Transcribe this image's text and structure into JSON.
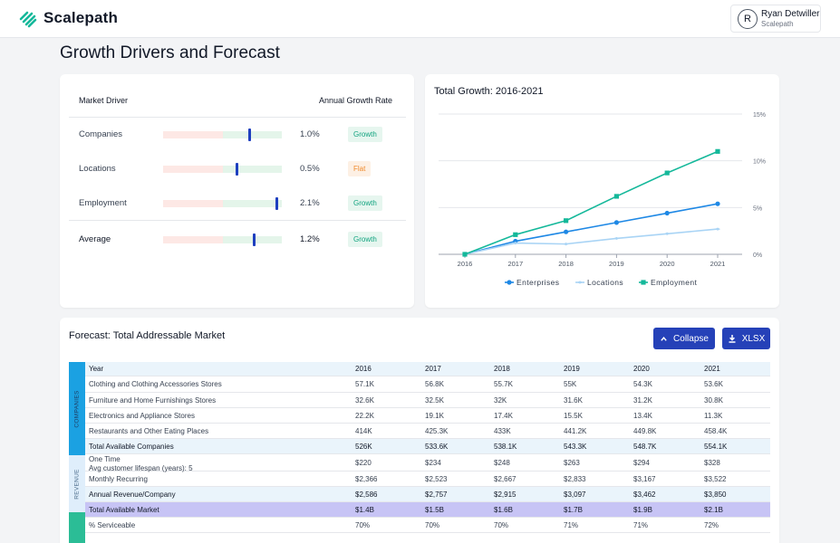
{
  "brand": {
    "name": "Scalepath"
  },
  "user": {
    "initial": "R",
    "name": "Ryan Detwiller",
    "org": "Scalepath"
  },
  "page": {
    "title": "Growth Drivers and Forecast"
  },
  "drivers": {
    "header_driver": "Market Driver",
    "header_rate": "Annual Growth Rate",
    "rows": [
      {
        "label": "Companies",
        "rate": "1.0%",
        "marker": 0.73,
        "status": "Growth"
      },
      {
        "label": "Locations",
        "rate": "0.5%",
        "marker": 0.62,
        "status": "Flat"
      },
      {
        "label": "Employment",
        "rate": "2.1%",
        "marker": 0.96,
        "status": "Growth"
      }
    ],
    "average": {
      "label": "Average",
      "rate": "1.2%",
      "marker": 0.77,
      "status": "Growth"
    }
  },
  "chart": {
    "title": "Total Growth: 2016-2021",
    "legend": [
      "Enterprises",
      "Locations",
      "Employment"
    ]
  },
  "chart_data": {
    "type": "line",
    "title": "Total Growth: 2016-2021",
    "x": [
      "2016",
      "2017",
      "2018",
      "2019",
      "2020",
      "2021"
    ],
    "y_ticks": [
      "0%",
      "5%",
      "10%",
      "15%"
    ],
    "ylim": [
      0,
      15
    ],
    "y_axis_side": "right",
    "grid": true,
    "legend_position": "bottom",
    "series": [
      {
        "name": "Enterprises",
        "color": "#1e88e5",
        "marker": "circle",
        "values": [
          0,
          1.4,
          2.4,
          3.4,
          4.4,
          5.4
        ]
      },
      {
        "name": "Locations",
        "color": "#a9d4f5",
        "marker": "diamond",
        "values": [
          0,
          1.2,
          1.1,
          1.7,
          2.2,
          2.7
        ]
      },
      {
        "name": "Employment",
        "color": "#14b89a",
        "marker": "square",
        "values": [
          0,
          2.1,
          3.6,
          6.2,
          8.7,
          11.0
        ]
      }
    ]
  },
  "forecast": {
    "title": "Forecast: Total Addressable Market",
    "collapse_label": "Collapse",
    "xlsx_label": "XLSX",
    "groups": {
      "companies": "COMPANIES",
      "revenue": "REVENUE"
    },
    "header": [
      "Year",
      "2016",
      "2017",
      "2018",
      "2019",
      "2020",
      "2021"
    ],
    "rows": [
      {
        "label": "Clothing and Clothing Accessories Stores",
        "values": [
          "57.1K",
          "56.8K",
          "55.7K",
          "55K",
          "54.3K",
          "53.6K"
        ]
      },
      {
        "label": "Furniture and Home Furnishings Stores",
        "values": [
          "32.6K",
          "32.5K",
          "32K",
          "31.6K",
          "31.2K",
          "30.8K"
        ]
      },
      {
        "label": "Electronics and Appliance Stores",
        "values": [
          "22.2K",
          "19.1K",
          "17.4K",
          "15.5K",
          "13.4K",
          "11.3K"
        ]
      },
      {
        "label": "Restaurants and Other Eating Places",
        "values": [
          "414K",
          "425.3K",
          "433K",
          "441.2K",
          "449.8K",
          "458.4K"
        ]
      },
      {
        "label": "Total Available Companies",
        "values": [
          "526K",
          "533.6K",
          "538.1K",
          "543.3K",
          "548.7K",
          "554.1K"
        ]
      },
      {
        "label": "One Time",
        "sublabel": "Avg customer lifespan (years): 5",
        "values": [
          "$220",
          "$234",
          "$248",
          "$263",
          "$294",
          "$328"
        ]
      },
      {
        "label": "Monthly Recurring",
        "values": [
          "$2,366",
          "$2,523",
          "$2,667",
          "$2,833",
          "$3,167",
          "$3,522"
        ]
      },
      {
        "label": "Annual Revenue/Company",
        "values": [
          "$2,586",
          "$2,757",
          "$2,915",
          "$3,097",
          "$3,462",
          "$3,850"
        ]
      },
      {
        "label": "Total Available Market",
        "values": [
          "$1.4B",
          "$1.5B",
          "$1.6B",
          "$1.7B",
          "$1.9B",
          "$2.1B"
        ]
      },
      {
        "label": "% Serviceable",
        "values": [
          "70%",
          "70%",
          "70%",
          "71%",
          "71%",
          "72%"
        ]
      }
    ]
  }
}
